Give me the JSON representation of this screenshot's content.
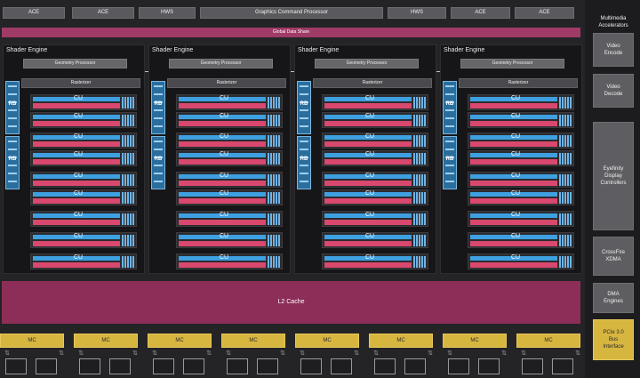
{
  "top_bar": {
    "items": [
      "ACE",
      "ACE",
      "HWS",
      "Graphics Command Processor",
      "HWS",
      "ACE",
      "ACE"
    ]
  },
  "global_data_share": "Global Data Share",
  "shader_engines": [
    {
      "title": "Shader Engine",
      "geometry": "Geometry Processor",
      "rasterizer": "Rasterizer",
      "rb_labels": [
        "RB",
        "RB"
      ],
      "cu_label": "CU"
    },
    {
      "title": "Shader Engine",
      "geometry": "Geometry Processor",
      "rasterizer": "Rasterizer",
      "rb_labels": [
        "RB",
        "RB"
      ],
      "cu_label": "CU"
    },
    {
      "title": "Shader Engine",
      "geometry": "Geometry Processor",
      "rasterizer": "Rasterizer",
      "rb_labels": [
        "RB",
        "RB"
      ],
      "cu_label": "CU"
    },
    {
      "title": "Shader Engine",
      "geometry": "Geometry Processor",
      "rasterizer": "Rasterizer",
      "rb_labels": [
        "RB",
        "RB"
      ],
      "cu_label": "CU"
    }
  ],
  "cus_per_engine": 9,
  "l2_cache": "L2 Cache",
  "memory_controllers": [
    "MC",
    "MC",
    "MC",
    "MC",
    "MC",
    "MC",
    "MC",
    "MC"
  ],
  "sidebar": {
    "title": "Multimedia\nAccelerators",
    "video_encode": "Video\nEncode",
    "video_decode": "Video\nDecode",
    "eyefinity": "Eyefinity\nDisplay\nControllers",
    "crossfire": "CrossFire\nXDMA",
    "dma": "DMA\nEngines",
    "pcie": "PCIe 3.0\nBus\nInterface"
  },
  "colors": {
    "cu_blue": "#3ea0e0",
    "cu_pink": "#d9486e",
    "l2": "#8c2e58",
    "mc": "#d7b640"
  }
}
